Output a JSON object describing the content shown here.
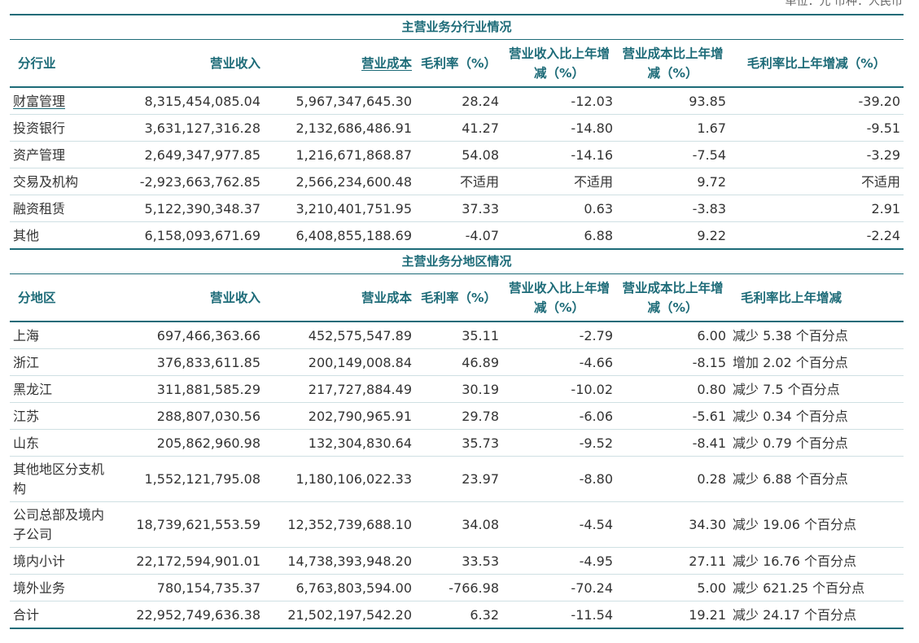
{
  "unit_note": "单位：元  币种：人民币",
  "industry": {
    "title": "主营业务分行业情况",
    "headers": [
      "分行业",
      "营业收入",
      "营业成本",
      "毛利率（%）",
      "营业收入比上年增减（%）",
      "营业成本比上年增减（%）",
      "毛利率比上年增减（%）"
    ],
    "rows": [
      [
        "财富管理",
        "8,315,454,085.04",
        "5,967,347,645.30",
        "28.24",
        "-12.03",
        "93.85",
        "-39.20"
      ],
      [
        "投资银行",
        "3,631,127,316.28",
        "2,132,686,486.91",
        "41.27",
        "-14.80",
        "1.67",
        "-9.51"
      ],
      [
        "资产管理",
        "2,649,347,977.85",
        "1,216,671,868.87",
        "54.08",
        "-14.16",
        "-7.54",
        "-3.29"
      ],
      [
        "交易及机构",
        "-2,923,663,762.85",
        "2,566,234,600.48",
        "不适用",
        "不适用",
        "9.72",
        "不适用"
      ],
      [
        "融资租赁",
        "5,122,390,348.37",
        "3,210,401,751.95",
        "37.33",
        "0.63",
        "-3.83",
        "2.91"
      ],
      [
        "其他",
        "6,158,093,671.69",
        "6,408,855,188.69",
        "-4.07",
        "6.88",
        "9.22",
        "-2.24"
      ]
    ]
  },
  "region": {
    "title": "主营业务分地区情况",
    "headers": [
      "分地区",
      "营业收入",
      "营业成本",
      "毛利率（%）",
      "营业收入比上年增减（%）",
      "营业成本比上年增减（%）",
      "毛利率比上年增减"
    ],
    "rows": [
      [
        "上海",
        "697,466,363.66",
        "452,575,547.89",
        "35.11",
        "-2.79",
        "6.00",
        "减少 5.38 个百分点"
      ],
      [
        "浙江",
        "376,833,611.85",
        "200,149,008.84",
        "46.89",
        "-4.66",
        "-8.15",
        "增加 2.02 个百分点"
      ],
      [
        "黑龙江",
        "311,881,585.29",
        "217,727,884.49",
        "30.19",
        "-10.02",
        "0.80",
        "减少 7.5 个百分点"
      ],
      [
        "江苏",
        "288,807,030.56",
        "202,790,965.91",
        "29.78",
        "-6.06",
        "-5.61",
        "减少 0.34 个百分点"
      ],
      [
        "山东",
        "205,862,960.98",
        "132,304,830.64",
        "35.73",
        "-9.52",
        "-8.41",
        "减少 0.79 个百分点"
      ],
      [
        "其他地区分支机构",
        "1,552,121,795.08",
        "1,180,106,022.33",
        "23.97",
        "-8.80",
        "0.28",
        "减少 6.88 个百分点"
      ],
      [
        "公司总部及境内子公司",
        "18,739,621,553.59",
        "12,352,739,688.10",
        "34.08",
        "-4.54",
        "34.30",
        "减少 19.06 个百分点"
      ],
      [
        "境内小计",
        "22,172,594,901.01",
        "14,738,393,948.20",
        "33.53",
        "-4.95",
        "27.11",
        "减少 16.76 个百分点"
      ],
      [
        "境外业务",
        "780,154,735.37",
        "6,763,803,594.00",
        "-766.98",
        "-70.24",
        "5.00",
        "减少 621.25 个百分点"
      ],
      [
        "合计",
        "22,952,749,636.38",
        "21,502,197,542.20",
        "6.32",
        "-11.54",
        "19.21",
        "减少 24.17 个百分点"
      ]
    ]
  }
}
